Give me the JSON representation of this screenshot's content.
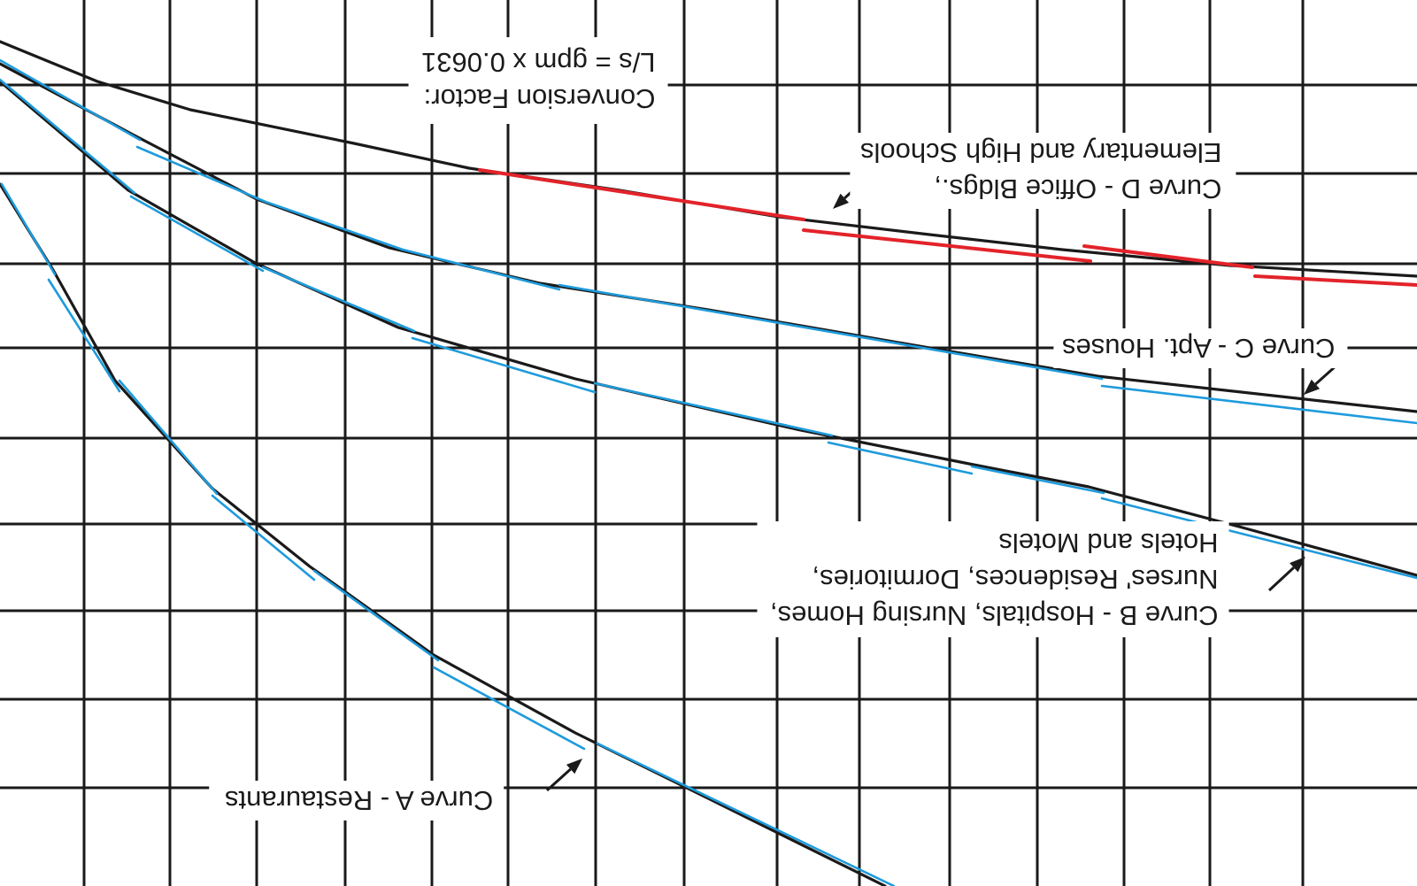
{
  "figure": {
    "labels": {
      "curve_a": [
        "Curve A - Restaurants"
      ],
      "curve_b": [
        "Curve B - Hospitals, Nursing Homes,",
        "Nurses' Residences, Dormitories,",
        "Hotels and Motels"
      ],
      "curve_c": [
        "Curve C - Apt. Houses"
      ],
      "curve_d": [
        "Curve D - Office Bldgs.,",
        "Elementary and High Schools"
      ],
      "conversion": [
        "Conversion Factor:",
        "L/s = gpm x 0.0631"
      ]
    },
    "colors": {
      "ink": "#1a1a1a",
      "overlay_blue": "#1e9bdc",
      "overlay_red": "#e3232a",
      "background": "#ffffff"
    },
    "orientation": "rotated-180"
  }
}
